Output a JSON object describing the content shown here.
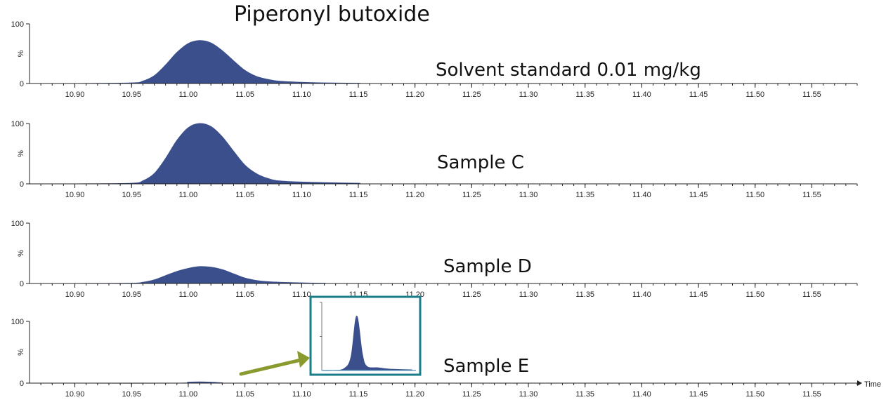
{
  "chart_data": {
    "type": "area",
    "title": "Piperonyl butoxide",
    "xlabel": "Time",
    "ylabel": "%",
    "xlim": [
      10.86,
      11.59
    ],
    "ylim": [
      0,
      100
    ],
    "y_ticks": [
      "100",
      "0"
    ],
    "x_ticks": [
      "10.90",
      "10.95",
      "11.00",
      "11.05",
      "11.10",
      "11.15",
      "11.20",
      "11.25",
      "11.30",
      "11.35",
      "11.40",
      "11.45",
      "11.50",
      "11.55"
    ],
    "fill_color": "#3a4f8c",
    "panels": [
      {
        "label": "Solvent standard 0.01 mg/kg",
        "peak_rt": 11.012,
        "peak_height": 72,
        "x": [
          10.9,
          10.95,
          10.96,
          10.97,
          10.98,
          10.99,
          11.0,
          11.01,
          11.02,
          11.03,
          11.04,
          11.05,
          11.06,
          11.07,
          11.08,
          11.1,
          11.12,
          11.15,
          11.18,
          11.54
        ],
        "values": [
          0,
          1,
          4,
          13,
          31,
          52,
          67,
          72,
          68,
          55,
          38,
          22,
          12,
          7,
          4,
          2,
          1,
          0.5,
          0,
          0
        ]
      },
      {
        "label": "Sample C",
        "peak_rt": 11.01,
        "peak_height": 100,
        "x": [
          10.9,
          10.95,
          10.96,
          10.97,
          10.98,
          10.99,
          11.0,
          11.01,
          11.02,
          11.03,
          11.04,
          11.05,
          11.06,
          11.07,
          11.08,
          11.1,
          11.12,
          11.15,
          11.18,
          11.54
        ],
        "values": [
          0,
          1,
          5,
          17,
          42,
          72,
          93,
          100,
          95,
          78,
          54,
          31,
          17,
          9,
          5,
          3,
          2,
          1,
          0,
          0
        ]
      },
      {
        "label": "Sample D",
        "peak_rt": 11.015,
        "peak_height": 28,
        "x": [
          10.9,
          10.95,
          10.96,
          10.97,
          10.98,
          10.99,
          11.0,
          11.01,
          11.02,
          11.03,
          11.04,
          11.05,
          11.06,
          11.07,
          11.08,
          11.1,
          11.12,
          11.15,
          11.54
        ],
        "values": [
          0,
          0.5,
          2,
          6,
          13,
          20,
          25,
          28,
          27,
          23,
          16,
          9,
          5,
          3,
          2,
          1,
          0.5,
          0,
          0
        ]
      },
      {
        "label": "Sample E",
        "peak_rt": 11.01,
        "peak_height": 2,
        "x": [
          10.9,
          10.99,
          11.0,
          11.01,
          11.02,
          11.03,
          11.04,
          11.54
        ],
        "values": [
          0,
          0,
          1.5,
          2,
          1.5,
          0.5,
          0,
          0
        ],
        "inset": {
          "xlim": [
            11.0,
            11.04
          ],
          "ylim": [
            0,
            100
          ],
          "x": [
            11.0,
            11.005,
            11.01,
            11.013,
            11.0155,
            11.018,
            11.02,
            11.025,
            11.03,
            11.04
          ],
          "values": [
            0,
            0,
            3,
            20,
            80,
            25,
            6,
            4,
            2,
            1
          ],
          "border_color": "#1a7d8a",
          "arrow_color": "#8a9a2e"
        }
      }
    ]
  }
}
